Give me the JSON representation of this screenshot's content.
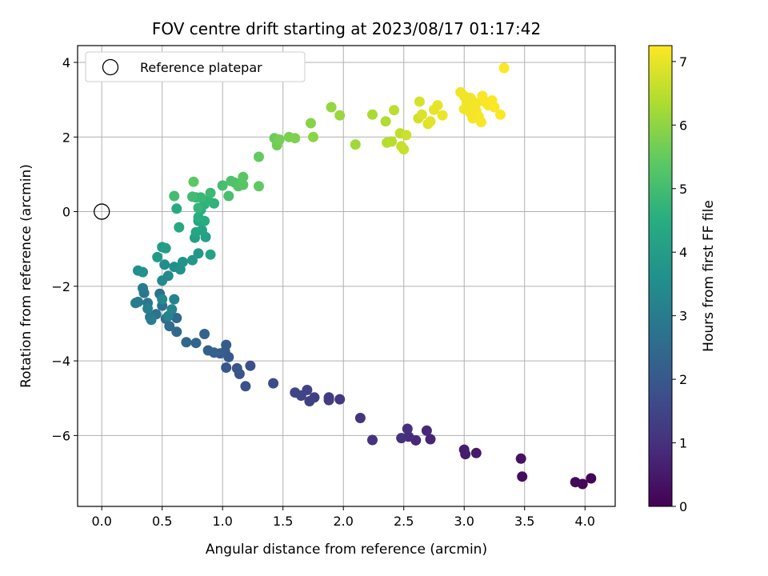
{
  "chart_data": {
    "type": "scatter",
    "title": "FOV centre drift starting at 2023/08/17 01:17:42",
    "xlabel": "Angular distance from reference (arcmin)",
    "ylabel": "Rotation from reference (arcmin)",
    "xlim": [
      -0.2,
      4.25
    ],
    "ylim": [
      -7.9,
      4.45
    ],
    "xticks": [
      0.0,
      0.5,
      1.0,
      1.5,
      2.0,
      2.5,
      3.0,
      3.5,
      4.0
    ],
    "xtick_labels": [
      "0.0",
      "0.5",
      "1.0",
      "1.5",
      "2.0",
      "2.5",
      "3.0",
      "3.5",
      "4.0"
    ],
    "yticks": [
      -6,
      -4,
      -2,
      0,
      2,
      4
    ],
    "ytick_labels": [
      "−6",
      "−4",
      "−2",
      "0",
      "2",
      "4"
    ],
    "grid": true,
    "legend": {
      "placement": "top-left",
      "entries": [
        "Reference platepar"
      ]
    },
    "reference_point": {
      "x": 0.0,
      "y": 0.0,
      "marker": "open-circle"
    },
    "colorbar": {
      "label": "Hours from first FF file",
      "range": [
        0,
        7.25
      ],
      "ticks": [
        0,
        1,
        2,
        3,
        4,
        5,
        6,
        7
      ],
      "tick_labels": [
        "0",
        "1",
        "2",
        "3",
        "4",
        "5",
        "6",
        "7"
      ],
      "colormap": "viridis"
    },
    "points": [
      [
        4.05,
        -7.15,
        0.05
      ],
      [
        3.98,
        -7.3,
        0.1
      ],
      [
        3.92,
        -7.25,
        0.15
      ],
      [
        3.48,
        -7.1,
        0.25
      ],
      [
        3.47,
        -6.62,
        0.35
      ],
      [
        3.1,
        -6.47,
        0.5
      ],
      [
        3.01,
        -6.5,
        0.55
      ],
      [
        3.0,
        -6.38,
        0.6
      ],
      [
        2.72,
        -6.1,
        0.75
      ],
      [
        2.69,
        -5.87,
        0.8
      ],
      [
        2.6,
        -6.13,
        0.85
      ],
      [
        2.54,
        -6.03,
        0.9
      ],
      [
        2.53,
        -5.82,
        0.95
      ],
      [
        2.48,
        -6.07,
        1.0
      ],
      [
        2.24,
        -6.12,
        1.05
      ],
      [
        2.14,
        -5.53,
        1.1
      ],
      [
        1.97,
        -5.03,
        1.2
      ],
      [
        1.88,
        -4.98,
        1.25
      ],
      [
        1.88,
        -5.05,
        1.3
      ],
      [
        1.76,
        -4.98,
        1.35
      ],
      [
        1.72,
        -5.08,
        1.4
      ],
      [
        1.7,
        -4.78,
        1.45
      ],
      [
        1.65,
        -4.93,
        1.5
      ],
      [
        1.6,
        -4.85,
        1.55
      ],
      [
        1.42,
        -4.6,
        1.65
      ],
      [
        1.23,
        -4.13,
        1.75
      ],
      [
        1.19,
        -4.68,
        1.8
      ],
      [
        1.14,
        -4.35,
        1.85
      ],
      [
        1.12,
        -4.2,
        1.9
      ],
      [
        1.03,
        -4.18,
        1.95
      ],
      [
        1.05,
        -3.9,
        2.0
      ],
      [
        1.02,
        -3.75,
        2.05
      ],
      [
        1.03,
        -3.57,
        2.1
      ],
      [
        0.98,
        -3.8,
        2.15
      ],
      [
        0.93,
        -3.78,
        2.2
      ],
      [
        0.88,
        -3.72,
        2.25
      ],
      [
        0.85,
        -3.28,
        2.3
      ],
      [
        0.78,
        -3.52,
        2.35
      ],
      [
        0.7,
        -3.5,
        2.4
      ],
      [
        0.62,
        -3.22,
        2.45
      ],
      [
        0.62,
        -2.85,
        2.5
      ],
      [
        0.56,
        -3.07,
        2.55
      ],
      [
        0.53,
        -2.87,
        2.6
      ],
      [
        0.5,
        -2.52,
        2.65
      ],
      [
        0.48,
        -2.2,
        2.7
      ],
      [
        0.45,
        -2.75,
        2.75
      ],
      [
        0.4,
        -2.83,
        2.8
      ],
      [
        0.38,
        -2.45,
        2.85
      ],
      [
        0.35,
        -2.18,
        2.9
      ],
      [
        0.34,
        -2.05,
        2.95
      ],
      [
        0.3,
        -2.42,
        3.0
      ],
      [
        0.28,
        -2.45,
        3.05
      ],
      [
        0.41,
        -2.9,
        3.1
      ],
      [
        0.38,
        -2.6,
        3.15
      ],
      [
        0.55,
        -2.8,
        3.2
      ],
      [
        0.6,
        -2.35,
        3.25
      ],
      [
        0.58,
        -2.62,
        3.3
      ],
      [
        0.5,
        -2.35,
        3.35
      ],
      [
        0.5,
        -1.85,
        3.4
      ],
      [
        0.55,
        -1.72,
        3.45
      ],
      [
        0.6,
        -1.48,
        3.5
      ],
      [
        0.52,
        -1.42,
        3.55
      ],
      [
        0.3,
        -1.58,
        3.6
      ],
      [
        0.34,
        -1.62,
        3.65
      ],
      [
        0.65,
        -1.55,
        3.7
      ],
      [
        0.67,
        -1.35,
        3.75
      ],
      [
        0.75,
        -1.3,
        3.8
      ],
      [
        0.8,
        -1.12,
        3.85
      ],
      [
        0.46,
        -1.22,
        3.9
      ],
      [
        0.5,
        -0.95,
        3.95
      ],
      [
        0.53,
        -0.98,
        4.0
      ],
      [
        0.77,
        -0.7,
        4.05
      ],
      [
        0.86,
        -0.68,
        4.1
      ],
      [
        0.9,
        -1.15,
        4.15
      ],
      [
        0.83,
        -0.5,
        4.2
      ],
      [
        0.78,
        -0.55,
        4.25
      ],
      [
        0.8,
        -0.25,
        4.3
      ],
      [
        0.64,
        -0.42,
        4.35
      ],
      [
        0.62,
        0.08,
        4.4
      ],
      [
        0.85,
        -0.25,
        4.45
      ],
      [
        0.82,
        0.05,
        4.5
      ],
      [
        0.8,
        -0.15,
        4.55
      ],
      [
        0.85,
        0.2,
        4.6
      ],
      [
        0.93,
        0.22,
        4.65
      ],
      [
        0.88,
        0.3,
        4.7
      ],
      [
        0.8,
        0.1,
        4.75
      ],
      [
        0.78,
        0.38,
        4.8
      ],
      [
        0.82,
        0.38,
        4.85
      ],
      [
        0.9,
        0.5,
        4.9
      ],
      [
        0.75,
        0.4,
        4.95
      ],
      [
        0.6,
        0.42,
        5.0
      ],
      [
        1.0,
        0.7,
        5.05
      ],
      [
        1.05,
        0.42,
        5.1
      ],
      [
        1.07,
        0.82,
        5.15
      ],
      [
        1.1,
        0.78,
        5.2
      ],
      [
        1.13,
        0.68,
        5.25
      ],
      [
        1.17,
        0.72,
        5.3
      ],
      [
        1.17,
        0.93,
        5.35
      ],
      [
        0.76,
        0.8,
        5.4
      ],
      [
        1.3,
        0.68,
        5.45
      ],
      [
        1.3,
        1.47,
        5.5
      ],
      [
        1.43,
        1.97,
        5.6
      ],
      [
        1.45,
        1.78,
        5.65
      ],
      [
        1.47,
        1.93,
        5.7
      ],
      [
        1.55,
        2.0,
        5.75
      ],
      [
        1.6,
        1.97,
        5.8
      ],
      [
        1.73,
        2.37,
        5.9
      ],
      [
        1.75,
        2.0,
        5.95
      ],
      [
        1.9,
        2.8,
        6.05
      ],
      [
        1.97,
        2.58,
        6.1
      ],
      [
        2.1,
        1.8,
        6.2
      ],
      [
        2.24,
        2.6,
        6.3
      ],
      [
        2.35,
        2.42,
        6.35
      ],
      [
        2.36,
        1.85,
        6.4
      ],
      [
        2.4,
        1.88,
        6.45
      ],
      [
        2.42,
        2.72,
        6.5
      ],
      [
        2.47,
        2.1,
        6.55
      ],
      [
        2.48,
        1.75,
        6.6
      ],
      [
        2.5,
        1.67,
        6.65
      ],
      [
        2.52,
        2.05,
        6.7
      ],
      [
        2.62,
        2.5,
        6.75
      ],
      [
        2.63,
        2.95,
        6.8
      ],
      [
        2.65,
        2.6,
        6.85
      ],
      [
        2.7,
        2.35,
        6.9
      ],
      [
        2.72,
        2.42,
        6.95
      ],
      [
        2.75,
        2.73,
        7.0
      ],
      [
        2.78,
        2.85,
        7.0
      ],
      [
        2.82,
        2.58,
        7.05
      ],
      [
        2.97,
        3.2,
        7.1
      ],
      [
        3.0,
        3.1,
        7.1
      ],
      [
        3.02,
        2.95,
        7.1
      ],
      [
        3.04,
        2.8,
        7.12
      ],
      [
        3.05,
        2.65,
        7.12
      ],
      [
        3.06,
        3.0,
        7.15
      ],
      [
        3.07,
        2.5,
        7.15
      ],
      [
        3.08,
        2.9,
        7.15
      ],
      [
        3.1,
        2.7,
        7.15
      ],
      [
        3.12,
        2.55,
        7.18
      ],
      [
        3.14,
        2.4,
        7.18
      ],
      [
        3.15,
        3.1,
        7.2
      ],
      [
        3.17,
        2.95,
        7.2
      ],
      [
        3.2,
        2.85,
        7.2
      ],
      [
        3.23,
        2.98,
        7.22
      ],
      [
        3.25,
        2.8,
        7.22
      ],
      [
        3.3,
        2.6,
        7.22
      ],
      [
        3.33,
        3.85,
        7.25
      ],
      [
        3.0,
        2.75,
        7.1
      ],
      [
        3.05,
        3.05,
        7.12
      ],
      [
        3.1,
        2.9,
        7.15
      ]
    ]
  }
}
